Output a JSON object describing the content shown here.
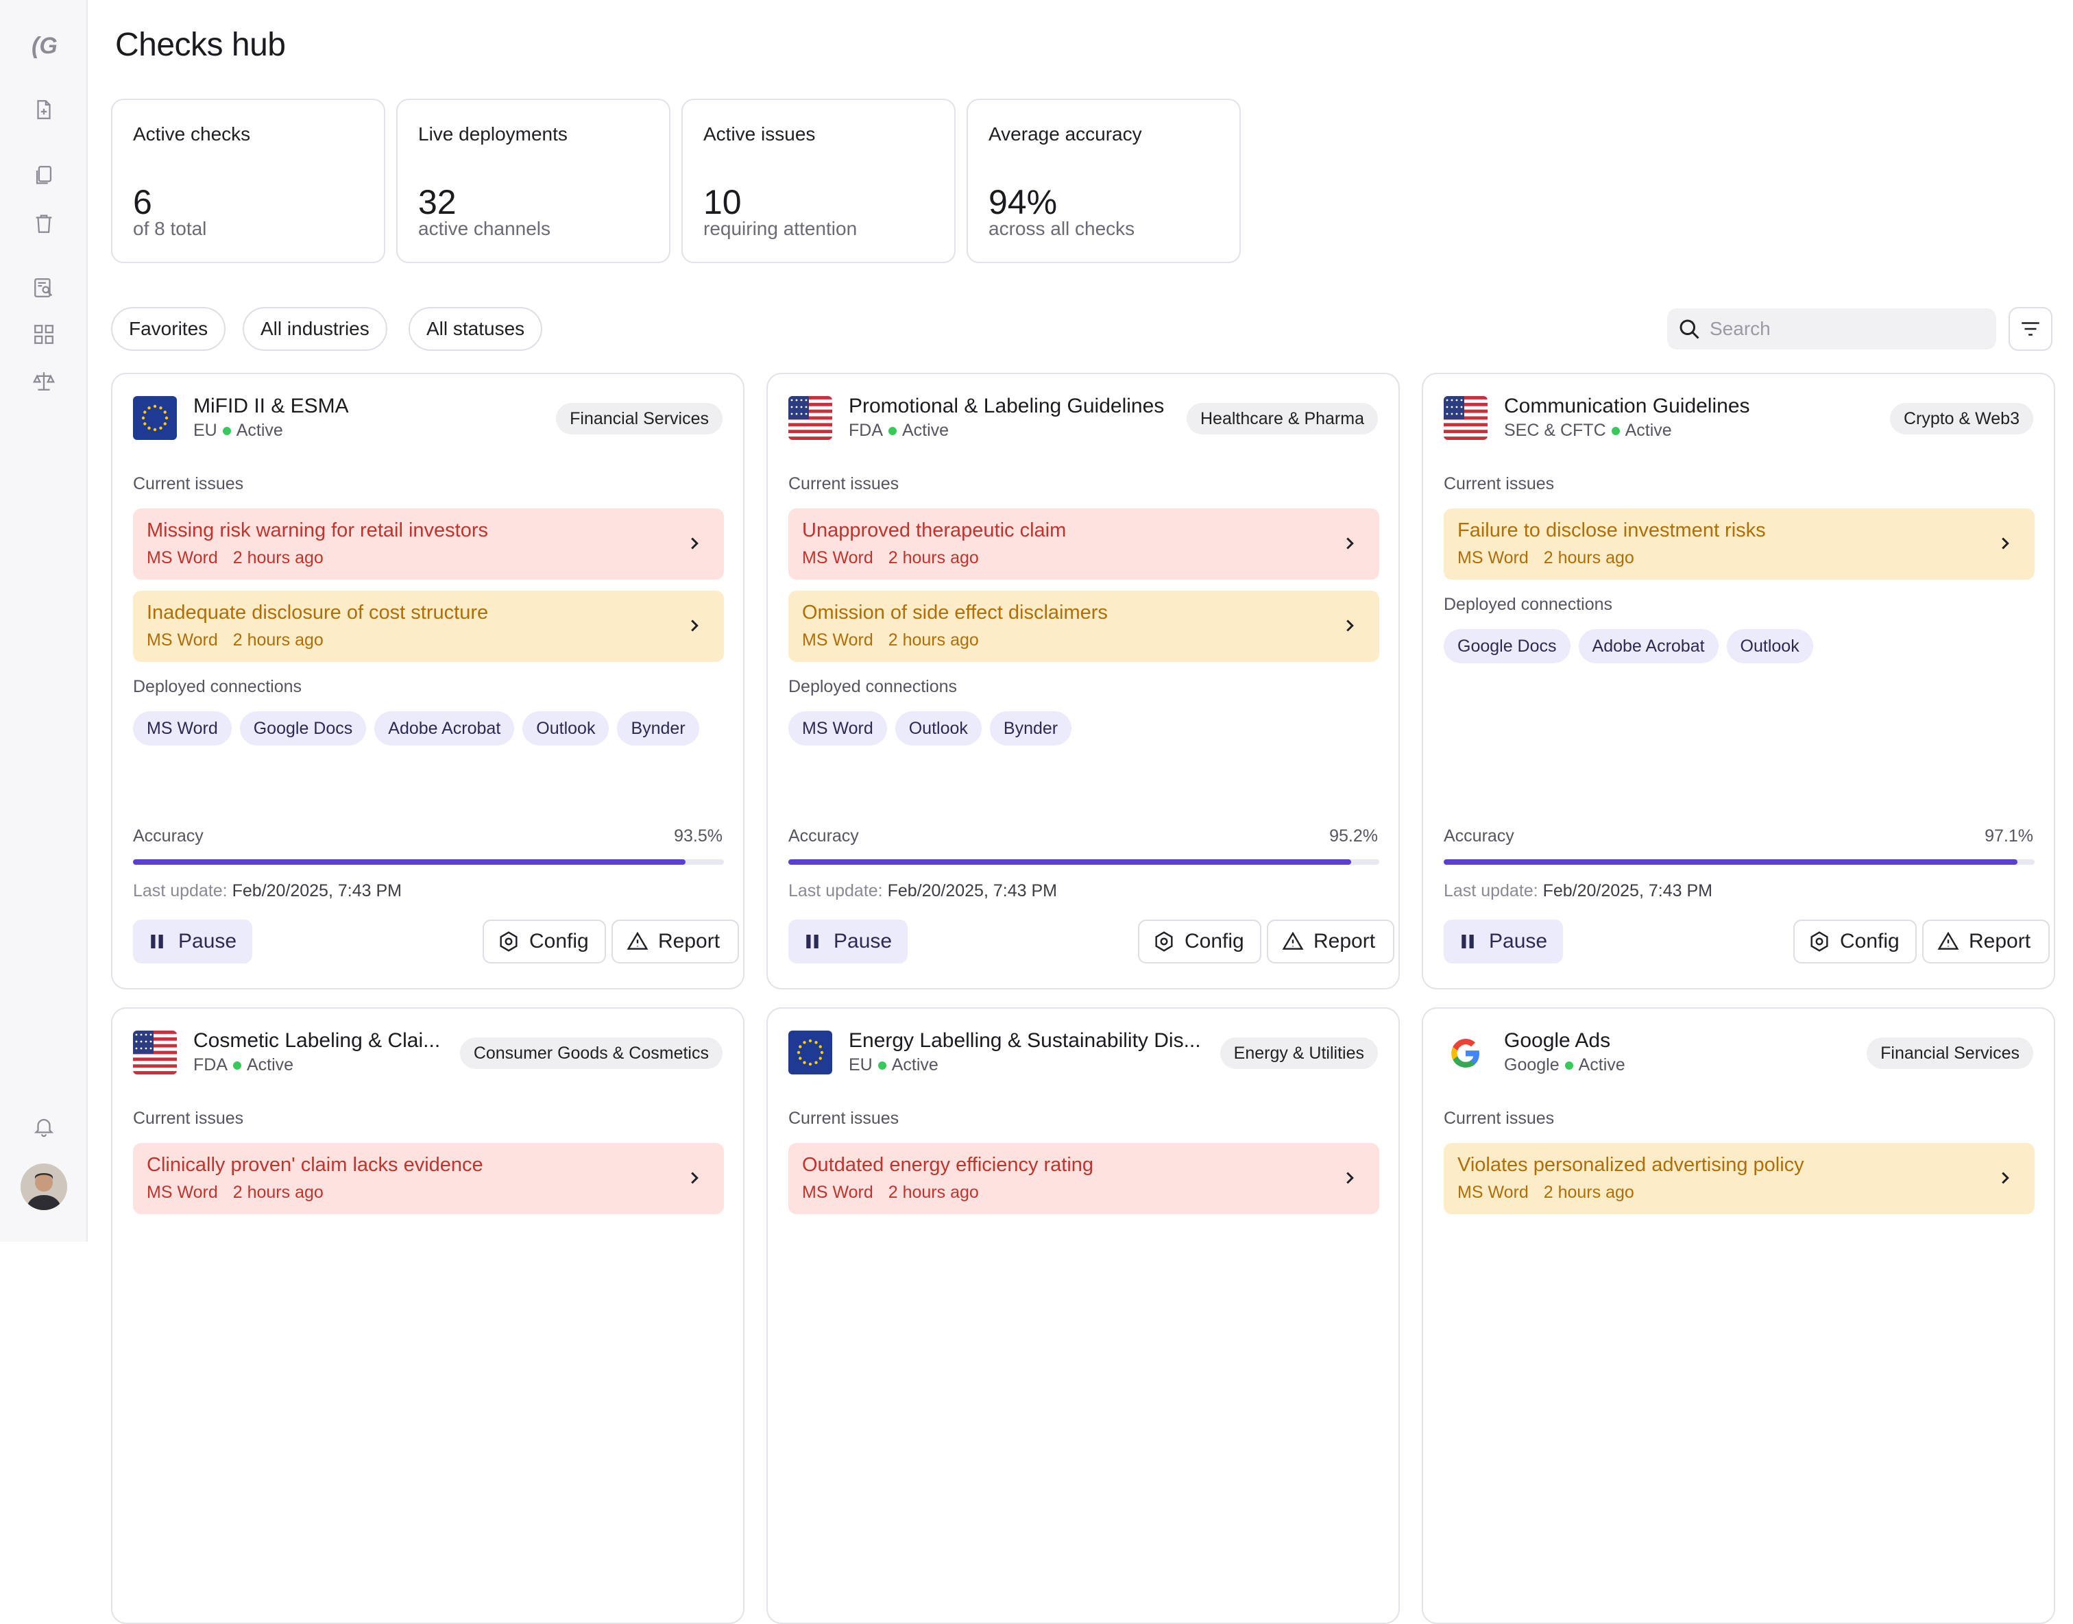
{
  "app": {
    "page_title": "Checks hub"
  },
  "stats": [
    {
      "label": "Active checks",
      "value": "6",
      "sub": "of 8 total"
    },
    {
      "label": "Live deployments",
      "value": "32",
      "sub": "active channels"
    },
    {
      "label": "Active issues",
      "value": "10",
      "sub": "requiring attention"
    },
    {
      "label": "Average accuracy",
      "value": "94%",
      "sub": "across all checks"
    }
  ],
  "filters": [
    "Favorites",
    "All industries",
    "All statuses"
  ],
  "search": {
    "placeholder": "Search",
    "value": ""
  },
  "labels": {
    "current_issues": "Current issues",
    "deployed_connections": "Deployed connections",
    "accuracy": "Accuracy",
    "last_update": "Last update:",
    "pause": "Pause",
    "config": "Config",
    "report": "Report"
  },
  "colors": {
    "accent": "#5b3fd1",
    "issue_red": "#c2342b",
    "issue_yellow": "#b06e05",
    "active_dot": "#37c95a"
  },
  "cards": [
    {
      "title": "MiFID II & ESMA",
      "flag": "eu",
      "region": "EU",
      "status": "Active",
      "industry": "Financial Services",
      "issues": [
        {
          "title": "Missing risk warning for retail investors",
          "source": "MS Word",
          "time": "2 hours ago",
          "severity": "red"
        },
        {
          "title": "Inadequate disclosure of cost structure",
          "source": "MS Word",
          "time": "2 hours ago",
          "severity": "yellow"
        }
      ],
      "connections": [
        "MS Word",
        "Google Docs",
        "Adobe Acrobat",
        "Outlook",
        "Bynder"
      ],
      "accuracy_label": "93.5%",
      "accuracy_value": 0.935,
      "last_update": "Feb/20/2025, 7:43 PM"
    },
    {
      "title": "Promotional & Labeling Guidelines",
      "flag": "us",
      "region": "FDA",
      "status": "Active",
      "industry": "Healthcare & Pharma",
      "issues": [
        {
          "title": "Unapproved therapeutic claim",
          "source": "MS Word",
          "time": "2 hours ago",
          "severity": "red"
        },
        {
          "title": "Omission of side effect disclaimers",
          "source": "MS Word",
          "time": "2 hours ago",
          "severity": "yellow"
        }
      ],
      "connections": [
        "MS Word",
        "Outlook",
        "Bynder"
      ],
      "accuracy_label": "95.2%",
      "accuracy_value": 0.952,
      "last_update": "Feb/20/2025, 7:43 PM"
    },
    {
      "title": "Communication Guidelines",
      "flag": "us",
      "region": "SEC & CFTC",
      "status": "Active",
      "industry": "Crypto & Web3",
      "issues": [
        {
          "title": "Failure to disclose investment risks",
          "source": "MS Word",
          "time": "2 hours ago",
          "severity": "yellow"
        }
      ],
      "connections": [
        "Google Docs",
        "Adobe Acrobat",
        "Outlook"
      ],
      "accuracy_label": "97.1%",
      "accuracy_value": 0.971,
      "last_update": "Feb/20/2025, 7:43 PM"
    },
    {
      "title": "Cosmetic Labeling & Clai...",
      "flag": "us",
      "region": "FDA",
      "status": "Active",
      "industry": "Consumer Goods & Cosmetics",
      "issues": [
        {
          "title": "Clinically proven' claim lacks evidence",
          "source": "MS Word",
          "time": "2 hours ago",
          "severity": "red"
        }
      ]
    },
    {
      "title": "Energy Labelling & Sustainability Dis...",
      "flag": "eu",
      "region": "EU",
      "status": "Active",
      "industry": "Energy & Utilities",
      "issues": [
        {
          "title": "Outdated energy efficiency rating",
          "source": "MS Word",
          "time": "2 hours ago",
          "severity": "red"
        }
      ]
    },
    {
      "title": "Google Ads",
      "flag": "google",
      "region": "Google",
      "status": "Active",
      "industry": "Financial Services",
      "issues": [
        {
          "title": "Violates personalized advertising policy",
          "source": "MS Word",
          "time": "2 hours ago",
          "severity": "yellow"
        }
      ]
    }
  ]
}
